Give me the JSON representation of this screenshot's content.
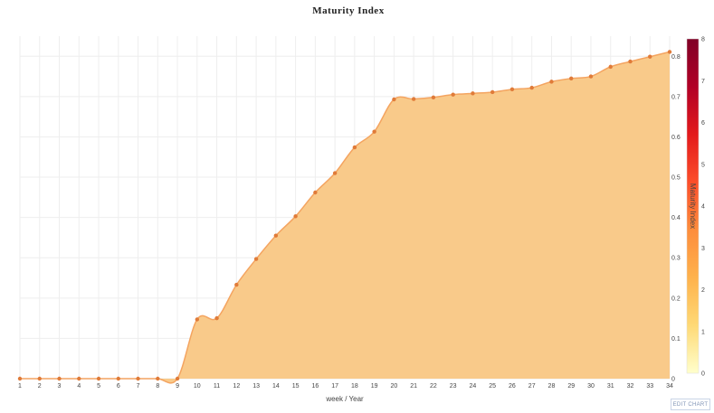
{
  "chart_data": {
    "type": "area",
    "title": "Maturity Index",
    "xlabel": "week / Year",
    "ylabel": "",
    "x": [
      1,
      2,
      3,
      4,
      5,
      6,
      7,
      8,
      9,
      10,
      11,
      12,
      13,
      14,
      15,
      16,
      17,
      18,
      19,
      20,
      21,
      22,
      23,
      24,
      25,
      26,
      27,
      28,
      29,
      30,
      31,
      32,
      33,
      34
    ],
    "series": [
      {
        "values": [
          0,
          0,
          0,
          0,
          0,
          0,
          0,
          0,
          0,
          0.147,
          0.15,
          0.233,
          0.297,
          0.355,
          0.403,
          0.462,
          0.51,
          0.574,
          0.613,
          0.693,
          0.694,
          0.698,
          0.705,
          0.708,
          0.711,
          0.718,
          0.722,
          0.737,
          0.745,
          0.75,
          0.774,
          0.787,
          0.799,
          0.811
        ]
      }
    ],
    "xlim": [
      1,
      34
    ],
    "ylim": [
      0,
      0.85
    ],
    "y_ticks": [
      "0",
      "0.1",
      "0.2",
      "0.3",
      "0.4",
      "0.5",
      "0.6",
      "0.7",
      "0.8"
    ],
    "grid": true,
    "legend": "none",
    "colorbar": {
      "title": "Maturity Index",
      "range": [
        0,
        8
      ],
      "ticks": [
        "0",
        "1",
        "2",
        "3",
        "4",
        "5",
        "6",
        "7",
        "8"
      ],
      "colors": [
        "#ffffcc",
        "#fed976",
        "#feb24c",
        "#fd8d3c",
        "#fc4e2a",
        "#e31a1c",
        "#b10026",
        "#800026"
      ]
    },
    "colors": {
      "fill": "#f9c784",
      "line": "#f4a460",
      "marker": "#e07b39",
      "grid": "#eeeeee"
    }
  },
  "toolbar": {
    "edit_label": "EDIT CHART"
  }
}
